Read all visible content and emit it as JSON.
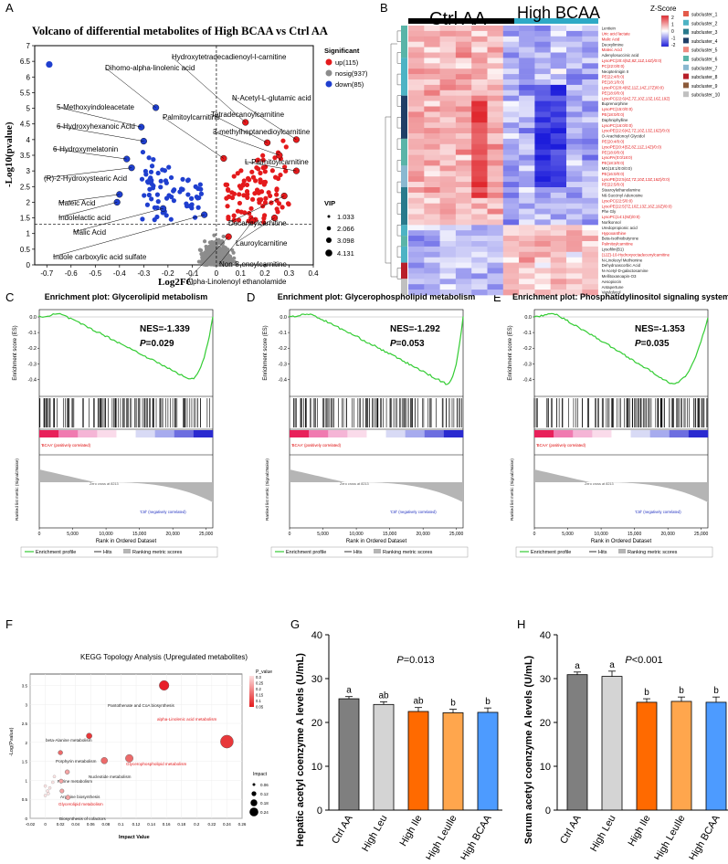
{
  "panels": {
    "A": "A",
    "B": "B",
    "C": "C",
    "D": "D",
    "E": "E",
    "F": "F",
    "G": "G",
    "H": "H"
  },
  "colors": {
    "up": "#e41a1c",
    "down": "#1f3fcf",
    "nosig": "#8c8c8c",
    "green": "#33cc33",
    "pink": "#f4a6c9",
    "gray": "#7f7f7f",
    "light": "#d4d4d4",
    "orange": "#ff6a00",
    "lorange": "#ffa64d",
    "blue": "#4d9bff"
  },
  "chart_data": [
    {
      "panel": "A",
      "type": "scatter",
      "title": "Volcano of differential metabolites of High BCAA vs Ctrl AA",
      "xlabel": "Log2FC",
      "ylabel": "-Log10(pvalue)",
      "xlim": [
        -0.75,
        0.4
      ],
      "ylim": [
        0,
        7
      ],
      "xticks": [
        "-0.7",
        "-0.6",
        "-0.5",
        "-0.4",
        "-0.3",
        "-0.2",
        "-0.1",
        "0",
        "0.1",
        "0.2",
        "0.3",
        "0.4"
      ],
      "yticks": [
        "0",
        "0.5",
        "1",
        "1.5",
        "2",
        "2.5",
        "3",
        "3.5",
        "4",
        "4.5",
        "5",
        "5.5",
        "6",
        "6.5",
        "7"
      ],
      "legend_title": "Significant",
      "legend": [
        "up(115)",
        "nosig(937)",
        "down(85)"
      ],
      "vip_title": "VIP",
      "vip_levels": [
        "1.033",
        "2.066",
        "3.098",
        "4.131"
      ],
      "labeled_points": [
        {
          "name": "Dihomo-alpha-linolenic acid",
          "x": -0.25,
          "y": 5.02,
          "class": "down"
        },
        {
          "name": "5-Methoxyindoleacetate",
          "x": -0.31,
          "y": 4.4,
          "class": "down"
        },
        {
          "name": "6-Hydroxyhexanoic Acid",
          "x": -0.3,
          "y": 3.95,
          "class": "down"
        },
        {
          "name": "6-Hydroxymelatonin",
          "x": -0.37,
          "y": 3.38,
          "class": "down"
        },
        {
          "name": "(R)-2-Hydroxystearic Acid",
          "x": -0.35,
          "y": 3.1,
          "class": "down"
        },
        {
          "name": "Maleic Acid",
          "x": -0.4,
          "y": 2.25,
          "class": "down"
        },
        {
          "name": "Indolelactic acid",
          "x": -0.41,
          "y": 2.0,
          "class": "down"
        },
        {
          "name": "Malic Acid",
          "x": -0.22,
          "y": 1.8,
          "class": "down"
        },
        {
          "name": "Indole carboxylic acid sulfate",
          "x": -0.05,
          "y": 1.6,
          "class": "down"
        },
        {
          "name": "Hydroxytetradecadienoyl-l-carnitine",
          "x": 0.12,
          "y": 4.55,
          "class": "up"
        },
        {
          "name": "N-Acetyl-L-glutamic acid",
          "x": 0.33,
          "y": 4.0,
          "class": "up"
        },
        {
          "name": "Tetradecanoylcarnitine",
          "x": 0.21,
          "y": 3.9,
          "class": "up"
        },
        {
          "name": "3-methylheptanedioylcarnitine",
          "x": 0.26,
          "y": 3.5,
          "class": "up"
        },
        {
          "name": "Palmitoylcarnitine",
          "x": 0.03,
          "y": 3.4,
          "class": "up"
        },
        {
          "name": "L-Palmitoylcarnitine",
          "x": 0.33,
          "y": 3.0,
          "class": "up"
        },
        {
          "name": "Decanoylcarnitine",
          "x": 0.28,
          "y": 2.2,
          "class": "up"
        },
        {
          "name": "Lauroylcarnitine",
          "x": 0.24,
          "y": 1.5,
          "class": "up"
        },
        {
          "name": "Non-8-enoylcarnitine",
          "x": 0.15,
          "y": 1.4,
          "class": "up"
        },
        {
          "name": "Alpha-Linolenoyl ethanolamide",
          "x": 0.05,
          "y": 0.9,
          "class": "up"
        }
      ]
    },
    {
      "panel": "B",
      "type": "heatmap",
      "groups": [
        "Ctrl AA",
        "High BCAA"
      ],
      "scale_title": "Z-Score",
      "scale_ticks": [
        "2",
        "1",
        "0",
        "-1",
        "-2"
      ],
      "subclusters": [
        "subcluster_1",
        "subcluster_2",
        "subcluster_3",
        "subcluster_4",
        "subcluster_5",
        "subcluster_6",
        "subcluster_7",
        "subcluster_8",
        "subcluster_9",
        "subcluster_10"
      ],
      "subcluster_colors": [
        "#e45a4a",
        "#4db3c4",
        "#2a7a8c",
        "#1f3e66",
        "#f08a80",
        "#5ab4a8",
        "#8ab8d0",
        "#b81f2a",
        "#8b5a3a",
        "#c0c0c0"
      ],
      "rows": [
        {
          "name": "Lentiein",
          "red": false
        },
        {
          "name": "Uric acid lactate",
          "red": true
        },
        {
          "name": "Malic Acid",
          "red": true
        },
        {
          "name": "Deoxylimine",
          "red": false
        },
        {
          "name": "Maleic Acid",
          "red": true
        },
        {
          "name": "Adenylosuccinic acid",
          "red": false
        },
        {
          "name": "LysoPC(20:4(5Z,8Z,11Z,14Z)/0:0)",
          "red": true
        },
        {
          "name": "PC(22:0/0:0)",
          "red": true
        },
        {
          "name": "Neopterinigin II",
          "red": false
        },
        {
          "name": "PE(22:4/0:0)",
          "red": true
        },
        {
          "name": "PE(18:1/0:0)",
          "red": true
        },
        {
          "name": "LysoPC(20:4(8Z,11Z,14Z,17Z)/0:0)",
          "red": true
        },
        {
          "name": "PE(18:0/0:0)",
          "red": true
        },
        {
          "name": "LysoPC(22:6(4Z,7Z,10Z,13Z,16Z,19Z)",
          "red": true
        },
        {
          "name": "Buprenorphine",
          "red": false
        },
        {
          "name": "LysoPC(15:0/0:0)",
          "red": true
        },
        {
          "name": "PE(18:0/0:0)",
          "red": true
        },
        {
          "name": "Daphniphylline",
          "red": false
        },
        {
          "name": "LysoPC(16:0/0:0)",
          "red": true
        },
        {
          "name": "LysoPE(22:6(4Z,7Z,10Z,13Z,16Z)/0:0)",
          "red": true
        },
        {
          "name": "O-Arachidonoyl Glycidol",
          "red": false
        },
        {
          "name": "PE(20:4/0:0)",
          "red": true
        },
        {
          "name": "LysoPE(20:4(5Z,8Z,11Z,14Z)/0:0)",
          "red": true
        },
        {
          "name": "PE(18:0/0:0)",
          "red": true
        },
        {
          "name": "LysoPA(0:0/18:0)",
          "red": true
        },
        {
          "name": "PE(18:3/0:0)",
          "red": true
        },
        {
          "name": "MG(18:1/0:0/0:0)",
          "red": false
        },
        {
          "name": "PE(16:0/0:0)",
          "red": true
        },
        {
          "name": "LysoPE(22:5(4Z,7Z,10Z,13Z,16Z)/0:0)",
          "red": true
        },
        {
          "name": "PE(22:5/0:0)",
          "red": true
        },
        {
          "name": "Stearoylethanolamine",
          "red": false
        },
        {
          "name": "N6-Succinyl Adenosine",
          "red": false
        },
        {
          "name": "LysoPC(22:5/0:0)",
          "red": true
        },
        {
          "name": "LysoPE(22:5(7Z,10Z,13Z,16Z,19Z)/0:0)",
          "red": true
        },
        {
          "name": "Phe Gly",
          "red": false
        },
        {
          "name": "LysoPC(14:1(9Z)/0:0)",
          "red": true
        },
        {
          "name": "Norlkonnol",
          "red": false
        },
        {
          "name": "Uredopropionic acid",
          "red": false
        },
        {
          "name": "Hypoxanthine",
          "red": true
        },
        {
          "name": "Beta-Isothiobutyrone",
          "red": false
        },
        {
          "name": "Palmitoylcarnitine",
          "red": true
        },
        {
          "name": "Lysofilm(B1)",
          "red": false
        },
        {
          "name": "(12Z)-10-Hydroxyoctadecenylcarnitine",
          "red": true
        },
        {
          "name": "N-Linoleoyl Methionine",
          "red": false
        },
        {
          "name": "Dehydroascorbic Acid",
          "red": false
        },
        {
          "name": "N-Acetyl-D-galactosamine",
          "red": false
        },
        {
          "name": "Mellitoxanoapin-O3",
          "red": false
        },
        {
          "name": "Aesopiocin",
          "red": false
        },
        {
          "name": "Antapertune",
          "red": false
        },
        {
          "name": "Varylglycol",
          "red": false
        }
      ]
    },
    {
      "panel": "C",
      "type": "line",
      "title": "Enrichment plot: Glycerolipid metabolism",
      "nes": "NES=-1.339",
      "p": "P=0.029",
      "p_label": "P",
      "p_value": "=0.029",
      "ylabel": "Enrichment score (ES)",
      "ylabel2": "Ranked list metric (Signal2Noise)",
      "xlabel": "Rank in Ordered Dataset",
      "yticks": [
        "0.0",
        "-0.1",
        "-0.2",
        "-0.3",
        "-0.4"
      ],
      "xticks": [
        "0",
        "5,000",
        "10,000",
        "15,000",
        "20,000",
        "25,000"
      ],
      "min_es": -0.4,
      "min_at": 22500,
      "legend": [
        "Enrichment profile",
        "Hits",
        "Ranking metric scores"
      ],
      "pos_label": "'BCAA' (positively correlated)",
      "neg_label": "'Ctrl' (negatively correlated)",
      "zero_label": "Zero cross at 8213"
    },
    {
      "panel": "D",
      "type": "line",
      "title": "Enrichment plot: Glycerophospholipid metabolism",
      "nes": "NES=-1.292",
      "p": "P=0.053",
      "p_label": "P",
      "p_value": "=0.053",
      "ylabel": "Enrichment score (ES)",
      "ylabel2": "Ranked list metric (Signal2Noise)",
      "xlabel": "Rank in Ordered Dataset",
      "yticks": [
        "0.0",
        "-0.1",
        "-0.2",
        "-0.3",
        "-0.4"
      ],
      "xticks": [
        "0",
        "5,000",
        "10,000",
        "15,000",
        "20,000",
        "25,000"
      ],
      "min_es": -0.43,
      "min_at": 23500,
      "legend": [
        "Enrichment profile",
        "Hits",
        "Ranking metric scores"
      ],
      "pos_label": "'BCAA' (positively correlated)",
      "neg_label": "'Ctrl' (negatively correlated)",
      "zero_label": "Zero cross at 8213"
    },
    {
      "panel": "E",
      "type": "line",
      "title": "Enrichment plot: Phosphatidylinositol signaling system",
      "nes": "NES=-1.353",
      "p": "P=0.035",
      "p_label": "P",
      "p_value": "=0.035",
      "ylabel": "Enrichment score (ES)",
      "ylabel2": "Ranked list metric (Signal2Noise)",
      "xlabel": "Rank in Ordered Dataset",
      "yticks": [
        "0.0",
        "-0.1",
        "-0.2",
        "-0.3",
        "-0.4"
      ],
      "xticks": [
        "0",
        "5,000",
        "10,000",
        "15,000",
        "20,000",
        "25,000"
      ],
      "min_es": -0.43,
      "min_at": 20500,
      "legend": [
        "Enrichment profile",
        "Hits",
        "Ranking metric scores"
      ],
      "pos_label": "'BCAA' (positively correlated)",
      "neg_label": "'Ctrl' (negatively correlated)",
      "zero_label": "Zero cross at 8213"
    },
    {
      "panel": "F",
      "type": "scatter",
      "title": "KEGG Topology Analysis (Upregulated metabolites)",
      "xlabel": "Impact Value",
      "ylabel": "-Log(Pvalue)",
      "xticks": [
        "-0.02",
        "0",
        "0.02",
        "0.04",
        "0.06",
        "0.08",
        "0.1",
        "0.12",
        "0.14",
        "0.16",
        "0.18",
        "0.2",
        "0.22",
        "0.24",
        "0.26"
      ],
      "yticks": [
        "0",
        "0.5",
        "1",
        "1.5",
        "2",
        "2.5",
        "3",
        "3.5"
      ],
      "xlim": [
        -0.02,
        0.26
      ],
      "ylim": [
        0,
        3.8
      ],
      "legend_p_title": "P_value",
      "legend_p": [
        "0.3",
        "0.25",
        "0.2",
        "0.15",
        "0.1",
        "0.05"
      ],
      "legend_impact_title": "Impact",
      "legend_impact": [
        "0.06",
        "0.12",
        "0.18",
        "0.24"
      ],
      "points": [
        {
          "name": "Pantothenate and CoA biosynthesis",
          "x": 0.157,
          "y": 3.5,
          "impact": 0.16,
          "red": false
        },
        {
          "name": "alpha-Linolenic acid metabolism",
          "x": 0.24,
          "y": 2.02,
          "impact": 0.24,
          "red": true
        },
        {
          "name": "beta-Alanine metabolism",
          "x": 0.058,
          "y": 2.17,
          "impact": 0.06,
          "red": false
        },
        {
          "name": "Porphyrin metabolism",
          "x": 0.02,
          "y": 1.73,
          "impact": 0.03,
          "red": false
        },
        {
          "name": "Glycerophospholipid metabolism",
          "x": 0.111,
          "y": 1.58,
          "impact": 0.11,
          "red": true
        },
        {
          "name": "Nucleotide metabolism",
          "x": 0.078,
          "y": 1.52,
          "impact": 0.08,
          "red": false
        },
        {
          "name": "Purine metabolism",
          "x": 0.029,
          "y": 1.22,
          "impact": 0.03,
          "red": false
        },
        {
          "name": "Arginine biosynthesis",
          "x": 0.021,
          "y": 0.98,
          "impact": 0.02,
          "red": false
        },
        {
          "name": "Glycerolipid metabolism",
          "x": 0.022,
          "y": 0.72,
          "impact": 0.02,
          "red": true
        },
        {
          "name": "Biosynthesis of cofactors",
          "x": 0.03,
          "y": 0.55,
          "impact": 0.03,
          "red": false
        }
      ]
    },
    {
      "panel": "G",
      "type": "bar",
      "ylabel": "Hepatic acetyl coenzyme A levels (U/mL)",
      "p": "P=0.013",
      "p_label": "P",
      "p_value": "=0.013",
      "categories": [
        "Ctrl AA",
        "High Leu",
        "High Ile",
        "High LeuIle",
        "High BCAA"
      ],
      "values": [
        25.4,
        24.1,
        22.5,
        22.2,
        22.3
      ],
      "errors": [
        0.5,
        0.6,
        0.9,
        0.8,
        1.0
      ],
      "letters": [
        "a",
        "ab",
        "ab",
        "b",
        "b"
      ],
      "ylim": [
        0,
        40
      ],
      "yticks": [
        "0",
        "10",
        "20",
        "30",
        "40"
      ]
    },
    {
      "panel": "H",
      "type": "bar",
      "ylabel": "Serum acetyl coenzyme A levels (U/mL)",
      "p": "P<0.001",
      "p_label": "P",
      "p_value": "<0.001",
      "categories": [
        "Ctrl AA",
        "High Leu",
        "High Ile",
        "High LeuIle",
        "High BCAA"
      ],
      "values": [
        30.9,
        30.5,
        24.6,
        24.8,
        24.6
      ],
      "errors": [
        0.6,
        1.2,
        0.8,
        1.0,
        1.2
      ],
      "letters": [
        "a",
        "a",
        "b",
        "b",
        "b"
      ],
      "ylim": [
        0,
        40
      ],
      "yticks": [
        "0",
        "10",
        "20",
        "30",
        "40"
      ]
    }
  ]
}
